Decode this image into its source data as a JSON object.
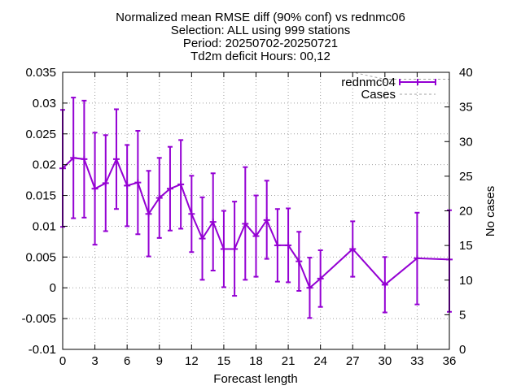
{
  "chart_data": {
    "type": "line",
    "title_lines": [
      "Normalized mean RMSE diff (90% conf) vs rednmc06",
      "Selection: ALL using   999 stations",
      "Period: 20250702-20250721",
      "Td2m deficit   Hours: 00,12"
    ],
    "xlabel": "Forecast length",
    "ylabel_right": "No cases",
    "xlim": [
      0,
      36
    ],
    "ylim": [
      -0.01,
      0.035
    ],
    "y2lim": [
      0,
      40
    ],
    "x_ticks": [
      "0",
      "3",
      "6",
      "9",
      "12",
      "15",
      "18",
      "21",
      "24",
      "27",
      "30",
      "33",
      "36"
    ],
    "y_ticks": [
      "-0.01",
      "-0.005",
      "0",
      "0.005",
      "0.01",
      "0.015",
      "0.02",
      "0.025",
      "0.03",
      "0.035"
    ],
    "y2_ticks": [
      "0",
      "5",
      "10",
      "15",
      "20",
      "25",
      "30",
      "35",
      "40"
    ],
    "grid": true,
    "legend_position": "top-right",
    "series": [
      {
        "name": "rednmc04",
        "color": "#9400d3",
        "points": [
          {
            "x": 0,
            "y": 0.0194,
            "lo": 0.0099,
            "hi": 0.0289
          },
          {
            "x": 1,
            "y": 0.0211,
            "lo": 0.0113,
            "hi": 0.0309
          },
          {
            "x": 2,
            "y": 0.0209,
            "lo": 0.0114,
            "hi": 0.0304
          },
          {
            "x": 3,
            "y": 0.0161,
            "lo": 0.007,
            "hi": 0.0252
          },
          {
            "x": 4,
            "y": 0.017,
            "lo": 0.0092,
            "hi": 0.0248
          },
          {
            "x": 5,
            "y": 0.0209,
            "lo": 0.0128,
            "hi": 0.029
          },
          {
            "x": 6,
            "y": 0.0166,
            "lo": 0.01,
            "hi": 0.0232
          },
          {
            "x": 7,
            "y": 0.0171,
            "lo": 0.0087,
            "hi": 0.0255
          },
          {
            "x": 8,
            "y": 0.012,
            "lo": 0.0051,
            "hi": 0.019
          },
          {
            "x": 9,
            "y": 0.0146,
            "lo": 0.0081,
            "hi": 0.0211
          },
          {
            "x": 10,
            "y": 0.0161,
            "lo": 0.0093,
            "hi": 0.0229
          },
          {
            "x": 11,
            "y": 0.0168,
            "lo": 0.0096,
            "hi": 0.024
          },
          {
            "x": 12,
            "y": 0.012,
            "lo": 0.0058,
            "hi": 0.0182
          },
          {
            "x": 13,
            "y": 0.008,
            "lo": 0.0013,
            "hi": 0.0147
          },
          {
            "x": 14,
            "y": 0.0107,
            "lo": 0.0028,
            "hi": 0.0186
          },
          {
            "x": 15,
            "y": 0.0063,
            "lo": 0.0001,
            "hi": 0.0125
          },
          {
            "x": 16,
            "y": 0.0063,
            "lo": -0.0013,
            "hi": 0.014
          },
          {
            "x": 17,
            "y": 0.0104,
            "lo": 0.0013,
            "hi": 0.0196
          },
          {
            "x": 18,
            "y": 0.0084,
            "lo": 0.0018,
            "hi": 0.015
          },
          {
            "x": 19,
            "y": 0.011,
            "lo": 0.0047,
            "hi": 0.0174
          },
          {
            "x": 20,
            "y": 0.0069,
            "lo": 0.001,
            "hi": 0.0128
          },
          {
            "x": 21,
            "y": 0.0069,
            "lo": 0.0009,
            "hi": 0.0129
          },
          {
            "x": 22,
            "y": 0.0043,
            "lo": -0.0005,
            "hi": 0.0091
          },
          {
            "x": 23,
            "y": 0.0,
            "lo": -0.0049,
            "hi": 0.0049
          },
          {
            "x": 24,
            "y": 0.0015,
            "lo": -0.0031,
            "hi": 0.0061
          },
          {
            "x": 27,
            "y": 0.0063,
            "lo": 0.0018,
            "hi": 0.0108
          },
          {
            "x": 30,
            "y": 0.0005,
            "lo": -0.004,
            "hi": 0.005
          },
          {
            "x": 33,
            "y": 0.0048,
            "lo": -0.0027,
            "hi": 0.0122
          },
          {
            "x": 36,
            "y": 0.0046,
            "lo": -0.0039,
            "hi": 0.0126
          }
        ]
      },
      {
        "name": "Cases",
        "color": "#a0a0a0",
        "axis": "right",
        "dashed": true,
        "x": [
          0,
          1,
          2,
          3,
          4,
          5,
          6,
          7,
          8,
          9,
          10,
          11,
          12,
          13,
          14,
          15,
          16,
          17,
          18,
          19,
          20,
          21,
          22,
          23,
          24,
          27,
          30,
          33,
          36
        ],
        "values": [
          40,
          40,
          40,
          40,
          40,
          40,
          40,
          40,
          40,
          40,
          40,
          40,
          40,
          40,
          40,
          40,
          40,
          40,
          40,
          40,
          40,
          40,
          40,
          40,
          40,
          40,
          39,
          39,
          39
        ]
      }
    ]
  }
}
